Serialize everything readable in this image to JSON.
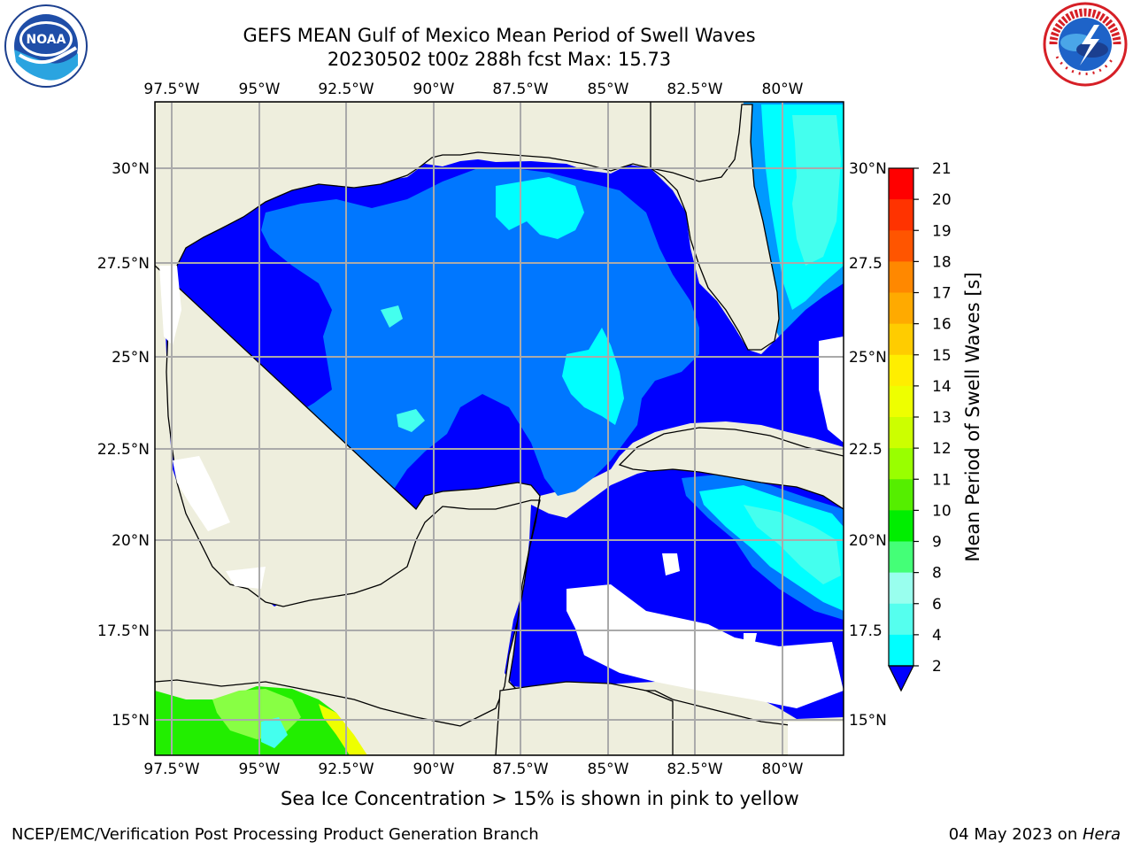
{
  "title": {
    "line1": "GEFS MEAN Gulf of Mexico Mean Period of Swell Waves",
    "line2": "20230502 t00z 288h fcst   Max: 15.73"
  },
  "logos": {
    "left": {
      "name": "noaa-logo",
      "text": "NOAA",
      "ring_text": "NATIONAL OCEANIC AND ATMOSPHERIC ADMINISTRATION · U.S. DEPARTMENT OF COMMERCE"
    },
    "right": {
      "name": "nws-logo",
      "ring_text": "NATIONAL WEATHER SERVICE"
    }
  },
  "map": {
    "lon_ticks": [
      "97.5°W",
      "95°W",
      "92.5°W",
      "90°W",
      "87.5°W",
      "85°W",
      "82.5°W",
      "80°W"
    ],
    "lat_ticks_left": [
      "30°N",
      "27.5°N",
      "25°N",
      "22.5°N",
      "20°N",
      "17.5°N",
      "15°N"
    ],
    "lat_ticks_right": [
      "30°N",
      "27.5",
      "25°N",
      "22.5",
      "20°N",
      "17.5",
      "15°N"
    ],
    "colors": {
      "land": "#eeeedd",
      "deep_blue": "#0000ff",
      "mid_blue": "#0077ff",
      "sky_blue": "#0099ff",
      "cyan": "#00ffff",
      "light_cyan": "#44ffee",
      "green": "#22ee00",
      "light_green": "#88ff44",
      "yellow": "#eeff00",
      "no_data": "#ffffff",
      "grid": "#aaaaaa"
    }
  },
  "colorbar": {
    "label": "Mean Period of Swell Waves [s]",
    "ticks": [
      "21",
      "20",
      "19",
      "18",
      "17",
      "16",
      "15",
      "14",
      "13",
      "12",
      "11",
      "10",
      "9",
      "8",
      "6",
      "4",
      "2"
    ],
    "colors": [
      "#ff0000",
      "#ff3300",
      "#ff5500",
      "#ff8800",
      "#ffaa00",
      "#ffcc00",
      "#ffee00",
      "#eeff00",
      "#ccff00",
      "#99ff00",
      "#55ee00",
      "#00ee00",
      "#44ff77",
      "#99ffee",
      "#55ffee",
      "#00ffff",
      "#00ddff",
      "#0077ff"
    ],
    "under_color": "#0000ff"
  },
  "note": "Sea Ice Concentration > 15% is shown in pink to yellow",
  "footer": {
    "left": "NCEP/EMC/Verification Post Processing Product Generation Branch",
    "right_date": "04 May 2023 on ",
    "right_host": "Hera"
  }
}
